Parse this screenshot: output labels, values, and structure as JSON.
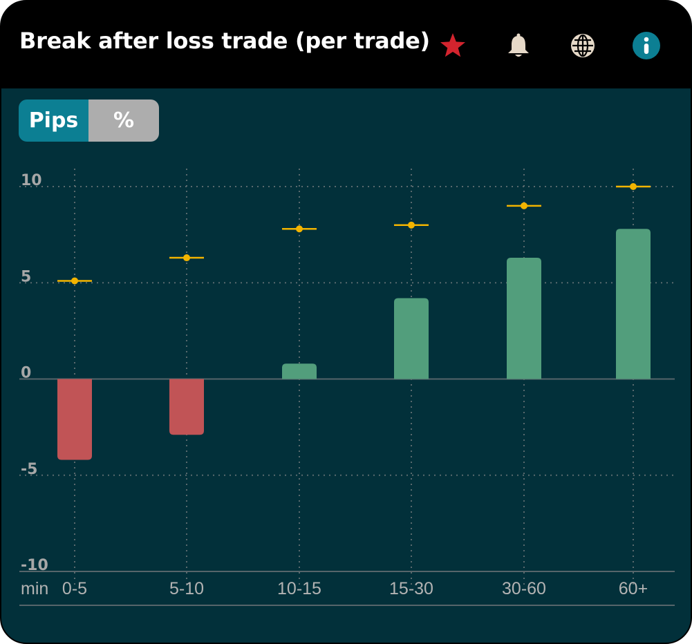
{
  "header": {
    "title": "Break after loss trade (per trade)",
    "icons": [
      "star-icon",
      "bell-icon",
      "globe-icon",
      "info-icon"
    ]
  },
  "toggle": {
    "active_label": "Pips",
    "inactive_label": "%"
  },
  "colors": {
    "positive": "#529e7c",
    "negative": "#c15456",
    "marker": "#f3b400",
    "star": "#d3242e",
    "info": "#0c7f93"
  },
  "chart_data": {
    "type": "bar",
    "x_unit_label": "min",
    "categories": [
      "0-5",
      "5-10",
      "10-15",
      "15-30",
      "30-60",
      "60+"
    ],
    "series": [
      {
        "values": [
          -4.2,
          -2.9,
          0.8,
          4.2,
          6.3,
          7.8
        ]
      },
      {
        "values": [
          5.1,
          6.3,
          7.8,
          8.0,
          9.0,
          10.0
        ]
      }
    ],
    "y_ticks": [
      10,
      5,
      0,
      -5,
      -10
    ],
    "ylim": [
      -10,
      10
    ],
    "grid": true
  }
}
